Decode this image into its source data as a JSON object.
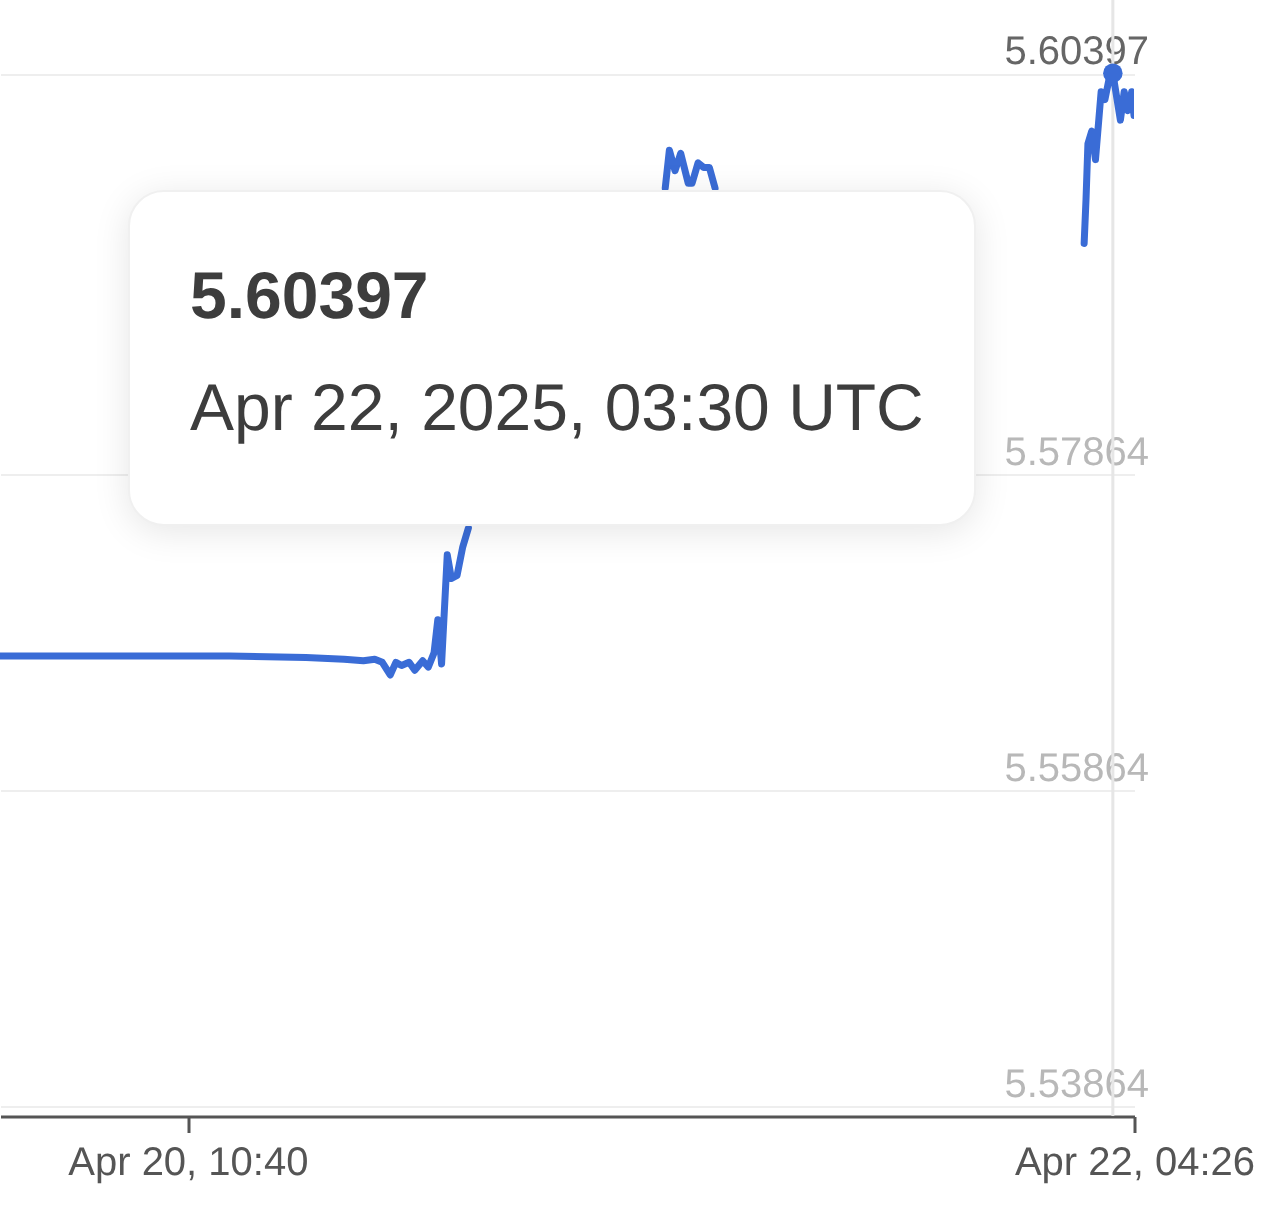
{
  "chart_data": {
    "type": "line",
    "series": [
      {
        "color": "#3a6cd6",
        "x": [
          "2025-04-20T02:24",
          "2025-04-20T07:28",
          "2025-04-20T12:31",
          "2025-04-20T15:54",
          "2025-04-20T17:35",
          "2025-04-20T18:26",
          "2025-04-20T18:56",
          "2025-04-20T19:16",
          "2025-04-20T19:37",
          "2025-04-20T19:52",
          "2025-04-20T20:07",
          "2025-04-20T20:27",
          "2025-04-20T20:42",
          "2025-04-20T21:03",
          "2025-04-20T21:18",
          "2025-04-20T21:33",
          "2025-04-20T21:43",
          "2025-04-20T21:53",
          "2025-04-20T22:08",
          "2025-04-20T22:19",
          "2025-04-20T22:34",
          "2025-04-20T22:49",
          "2025-04-20T23:04"
        ],
        "values": [
          5.5671,
          5.5671,
          5.5671,
          5.567,
          5.5669,
          5.5668,
          5.5669,
          5.5667,
          5.5659,
          5.5667,
          5.5665,
          5.5667,
          5.5662,
          5.5668,
          5.5664,
          5.5673,
          5.5694,
          5.5666,
          5.5735,
          5.572,
          5.5722,
          5.574,
          5.5752
        ]
      },
      {
        "color": "#3a6cd6",
        "x": [
          "2025-04-21T07:45",
          "2025-04-21T07:56",
          "2025-04-21T08:11",
          "2025-04-21T08:26",
          "2025-04-21T08:46",
          "2025-04-21T08:56",
          "2025-04-21T09:12",
          "2025-04-21T09:27",
          "2025-04-21T09:42",
          "2025-04-21T09:57"
        ],
        "values": [
          5.5967,
          5.5991,
          5.5978,
          5.5989,
          5.597,
          5.597,
          5.5983,
          5.598,
          5.598,
          5.5967
        ]
      },
      {
        "color": "#3a6cd6",
        "x": [
          "2025-04-22T02:14",
          "2025-04-22T02:19",
          "2025-04-22T02:24",
          "2025-04-22T02:34",
          "2025-04-22T02:44",
          "2025-04-22T02:59",
          "2025-04-22T03:09",
          "2025-04-22T03:20",
          "2025-04-22T03:30",
          "2025-04-22T03:50",
          "2025-04-22T04:00",
          "2025-04-22T04:10",
          "2025-04-22T04:20",
          "2025-04-22T04:26"
        ],
        "values": [
          5.5932,
          5.596,
          5.5995,
          5.6003,
          5.5985,
          5.6028,
          5.6023,
          5.6036,
          5.60397,
          5.601,
          5.6028,
          5.6016,
          5.6028,
          5.6013
        ]
      },
      {
        "type": "scatter",
        "color": "#3a6cd6",
        "marker": "circle",
        "x": [
          "2025-04-22T03:30"
        ],
        "values": [
          5.60397
        ]
      }
    ],
    "xlim": [
      "2025-04-20T02:24",
      "2025-04-22T04:26"
    ],
    "xticks": [
      {
        "value": "2025-04-20T10:40",
        "label": "Apr 20, 10:40"
      },
      {
        "value": "2025-04-22T04:26",
        "label": "Apr 22, 04:26"
      }
    ],
    "ylim": [
      5.538,
      5.6086
    ],
    "yticks": [
      5.53864,
      5.55864,
      5.57864,
      5.60397
    ],
    "grid": "y",
    "ref_lines": [
      {
        "axis": "x",
        "value": "2025-04-22T03:30",
        "color": "#e6e6e6"
      }
    ],
    "annotations": [
      "5.60397",
      "Apr 22, 2025, 03:30 UTC"
    ]
  }
}
